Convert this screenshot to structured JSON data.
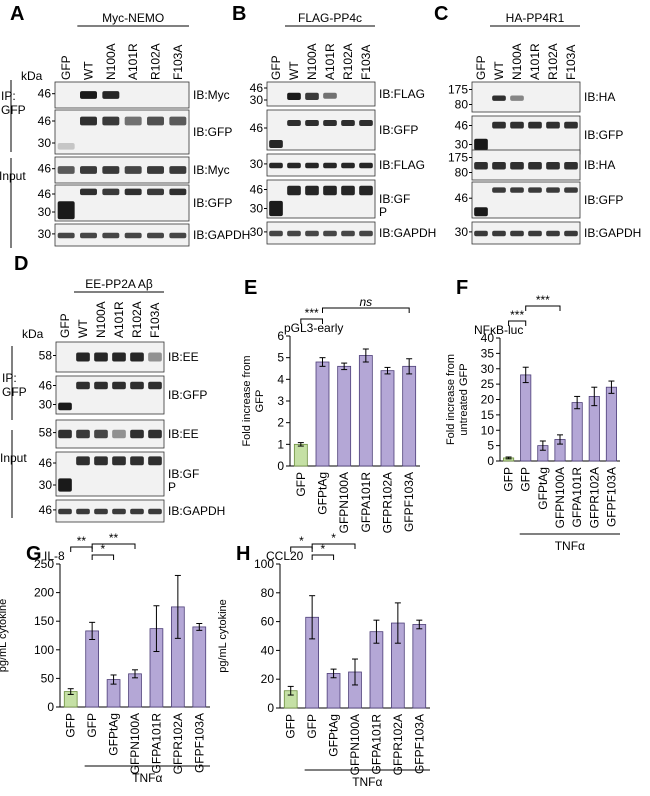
{
  "panel_letters": {
    "A": "A",
    "B": "B",
    "C": "C",
    "D": "D",
    "E": "E",
    "F": "F",
    "G": "G",
    "H": "H"
  },
  "kda_label": "kDa",
  "blots": {
    "A": {
      "header": "Myc-NEMO",
      "lanes": [
        "GFP",
        "WT",
        "N100A",
        "A101R",
        "R102A",
        "F103A"
      ],
      "section_ip": "IP:\nGFP",
      "section_input": "Input",
      "rows": [
        {
          "ib": "IB:Myc",
          "markers": [
            "46"
          ]
        },
        {
          "ib": "IB:GFP",
          "markers": [
            "46",
            "30"
          ]
        },
        {
          "ib": "IB:Myc",
          "markers": [
            "46"
          ]
        },
        {
          "ib": "IB:GFP",
          "markers": [
            "46",
            "30"
          ]
        },
        {
          "ib": "IB:GAPDH",
          "markers": [
            "30"
          ]
        }
      ]
    },
    "B": {
      "header": "FLAG-PP4c",
      "lanes": [
        "GFP",
        "WT",
        "N100A",
        "A101R",
        "R102A",
        "F103A"
      ],
      "rows": [
        {
          "ib": "IB:FLAG",
          "markers": [
            "46",
            "30"
          ]
        },
        {
          "ib": "IB:GFP",
          "markers": [
            "46"
          ]
        },
        {
          "ib": "IB:FLAG",
          "markers": [
            "30"
          ]
        },
        {
          "ib": "IB:GF\nP",
          "markers": [
            "46",
            "30"
          ]
        },
        {
          "ib": "IB:GAPDH",
          "markers": [
            "30"
          ]
        }
      ]
    },
    "C": {
      "header": "HA-PP4R1",
      "lanes": [
        "GFP",
        "WT",
        "N100A",
        "A101R",
        "R102A",
        "F103A"
      ],
      "rows": [
        {
          "ib": "IB:HA",
          "markers": [
            "175",
            "80"
          ]
        },
        {
          "ib": "IB:GFP",
          "markers": [
            "46",
            "30"
          ]
        },
        {
          "ib": "IB:HA",
          "markers": [
            "175",
            "80"
          ]
        },
        {
          "ib": "IB:GFP",
          "markers": [
            "46"
          ]
        },
        {
          "ib": "IB:GAPDH",
          "markers": [
            "30"
          ]
        }
      ]
    },
    "D": {
      "header": "EE-PP2A Aβ",
      "lanes": [
        "GFP",
        "WT",
        "N100A",
        "A101R",
        "R102A",
        "F103A"
      ],
      "section_ip": "IP:\nGFP",
      "section_input": "Input",
      "rows": [
        {
          "ib": "IB:EE",
          "markers": [
            "58"
          ]
        },
        {
          "ib": "IB:GFP",
          "markers": [
            "46",
            "30"
          ]
        },
        {
          "ib": "IB:EE",
          "markers": [
            "58"
          ]
        },
        {
          "ib": "IB:GF\nP",
          "markers": [
            "46",
            "30"
          ]
        },
        {
          "ib": "IB:GAPDH",
          "markers": [
            "46"
          ]
        }
      ]
    }
  },
  "chart_data": [
    {
      "panel": "E",
      "type": "bar",
      "title": "pGL3-early",
      "ylabel": "Fold increase from GFP",
      "ylim": [
        0,
        6
      ],
      "yticks": [
        0,
        1,
        2,
        3,
        4,
        5,
        6
      ],
      "categories": [
        "GFP",
        "GFPtAg",
        "GFPN100A",
        "GFPA101R",
        "GFPR102A",
        "GFPF103A"
      ],
      "values": [
        1.0,
        4.8,
        4.6,
        5.1,
        4.4,
        4.6
      ],
      "errors": [
        0.08,
        0.2,
        0.15,
        0.3,
        0.15,
        0.35
      ],
      "annotations": [
        {
          "from": 0,
          "to": 1,
          "label": "***",
          "italic": false
        },
        {
          "from": 1,
          "to": 5,
          "label": "ns",
          "italic": true
        }
      ]
    },
    {
      "panel": "F",
      "type": "bar",
      "title": "NFκB-luc",
      "ylabel": "Fold increase from untreated GFP",
      "ylim": [
        0,
        40
      ],
      "yticks": [
        0,
        5,
        10,
        15,
        20,
        25,
        30,
        35,
        40
      ],
      "categories": [
        "GFP",
        "GFP",
        "GFPtAg",
        "GFPN100A",
        "GFPA101R",
        "GFPR102A",
        "GFPF103A"
      ],
      "values": [
        1,
        28,
        5,
        7,
        19,
        21,
        24
      ],
      "errors": [
        0.3,
        2.5,
        1.5,
        1.5,
        2,
        3,
        2
      ],
      "treatment_label": "TNFα",
      "treatment_from": 1,
      "annotations": [
        {
          "from": 0,
          "to": 1,
          "label": "***",
          "italic": false
        },
        {
          "from": 1,
          "to": 3,
          "label": "***",
          "italic": false
        }
      ]
    },
    {
      "panel": "G",
      "type": "bar",
      "title": "IL-8",
      "ylabel": "pg/mL cytokine",
      "ylim": [
        0,
        250
      ],
      "yticks": [
        0,
        50,
        100,
        150,
        200,
        250
      ],
      "categories": [
        "GFP",
        "GFP",
        "GFPtAg",
        "GFPN100A",
        "GFPA101R",
        "GFPR102A",
        "GFPF103A"
      ],
      "values": [
        27,
        133,
        48,
        58,
        137,
        175,
        140
      ],
      "errors": [
        5,
        15,
        8,
        7,
        40,
        55,
        6
      ],
      "treatment_label": "TNFα",
      "treatment_from": 1,
      "annotations": [
        {
          "from": 0,
          "to": 1,
          "label": "**",
          "italic": false
        },
        {
          "from": 1,
          "to": 2,
          "label": "*",
          "italic": false
        },
        {
          "from": 1,
          "to": 3,
          "label": "**",
          "italic": false
        }
      ]
    },
    {
      "panel": "H",
      "type": "bar",
      "title": "CCL20",
      "ylabel": "pg/mL cytokine",
      "ylim": [
        0,
        100
      ],
      "yticks": [
        0,
        20,
        40,
        60,
        80,
        100
      ],
      "categories": [
        "GFP",
        "GFP",
        "GFPtAg",
        "GFPN100A",
        "GFPA101R",
        "GFPR102A",
        "GFPF103A"
      ],
      "values": [
        12,
        63,
        24,
        25,
        53,
        59,
        58
      ],
      "errors": [
        3,
        15,
        3,
        9,
        8,
        14,
        3
      ],
      "treatment_label": "TNFα",
      "treatment_from": 1,
      "annotations": [
        {
          "from": 0,
          "to": 1,
          "label": "*",
          "italic": false
        },
        {
          "from": 1,
          "to": 2,
          "label": "*",
          "italic": false
        },
        {
          "from": 1,
          "to": 3,
          "label": "*",
          "italic": false
        }
      ]
    }
  ]
}
